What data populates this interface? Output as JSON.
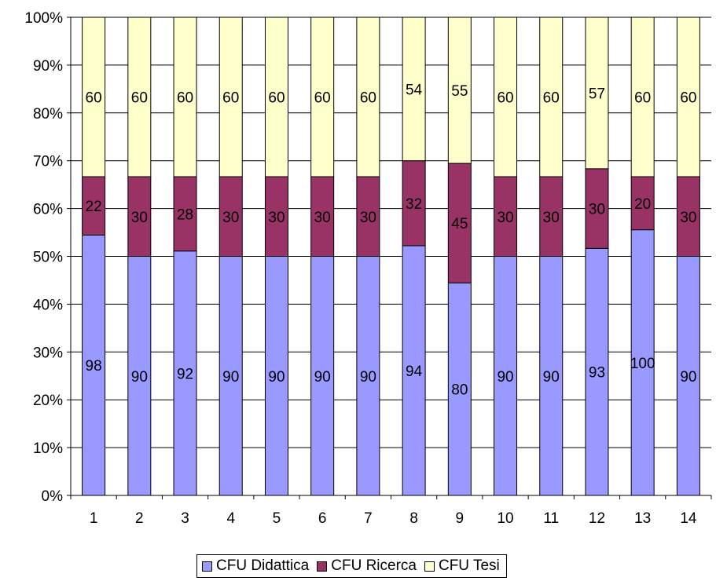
{
  "chart_data": {
    "type": "bar",
    "stacking": "percent",
    "categories": [
      "1",
      "2",
      "3",
      "4",
      "5",
      "6",
      "7",
      "8",
      "9",
      "10",
      "11",
      "12",
      "13",
      "14"
    ],
    "series": [
      {
        "name": "CFU Didattica",
        "color": "#9999ff",
        "values": [
          98,
          90,
          92,
          90,
          90,
          90,
          90,
          94,
          80,
          90,
          90,
          93,
          100,
          90
        ]
      },
      {
        "name": "CFU Ricerca",
        "color": "#993366",
        "values": [
          22,
          30,
          28,
          30,
          30,
          30,
          30,
          32,
          45,
          30,
          30,
          30,
          20,
          30
        ]
      },
      {
        "name": "CFU Tesi",
        "color": "#ffffcc",
        "values": [
          60,
          60,
          60,
          60,
          60,
          60,
          60,
          54,
          55,
          60,
          60,
          57,
          60,
          60
        ]
      }
    ],
    "y_ticks": [
      "0%",
      "10%",
      "20%",
      "30%",
      "40%",
      "50%",
      "60%",
      "70%",
      "80%",
      "90%",
      "100%"
    ],
    "ylim": [
      0,
      100
    ],
    "grid": true,
    "legend_position": "bottom",
    "data_labels": true
  }
}
